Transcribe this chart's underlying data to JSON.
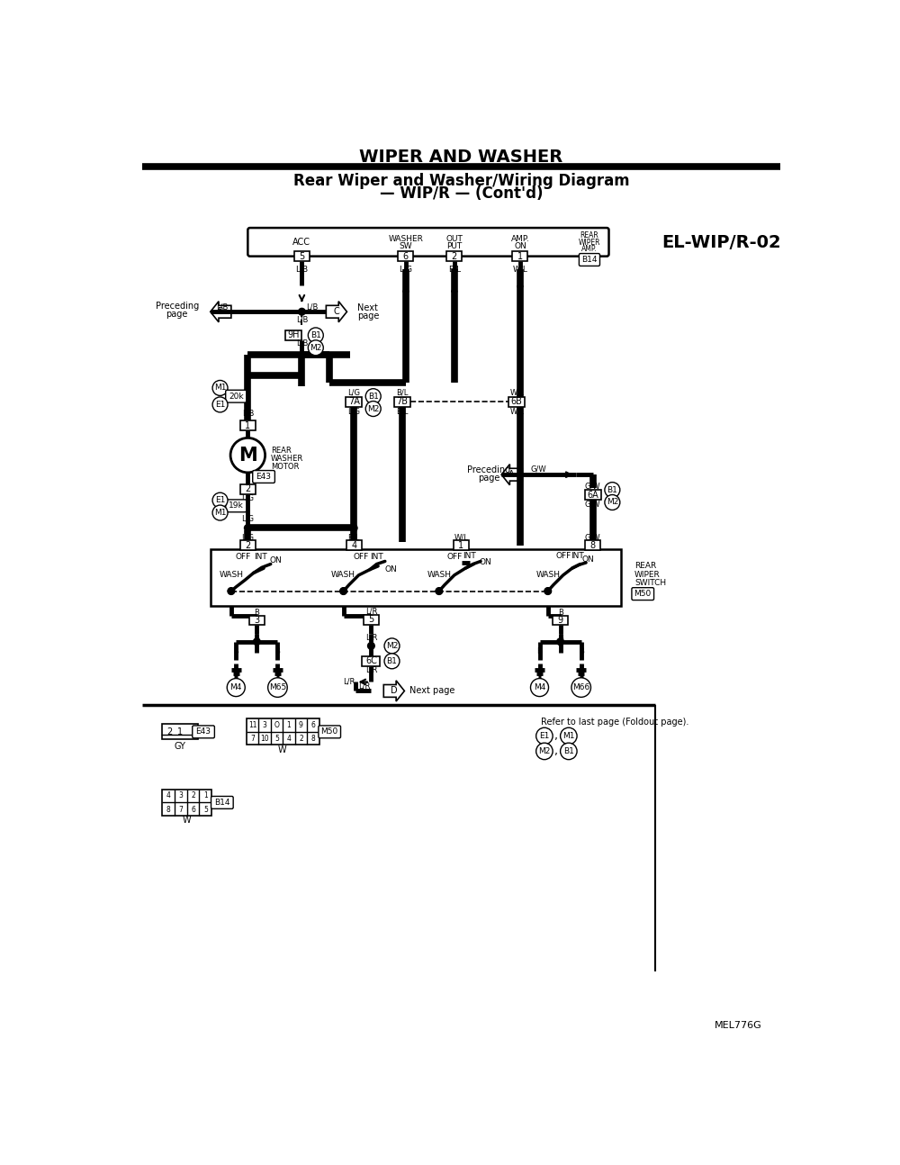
{
  "title_main": "WIPER AND WASHER",
  "title_sub1": "Rear Wiper and Washer/Wiring Diagram",
  "title_sub2": "— WIP/R — (Cont'd)",
  "diagram_id": "EL-WIP/R-02",
  "diagram_code": "MEL776G",
  "bg": "#ffffff"
}
